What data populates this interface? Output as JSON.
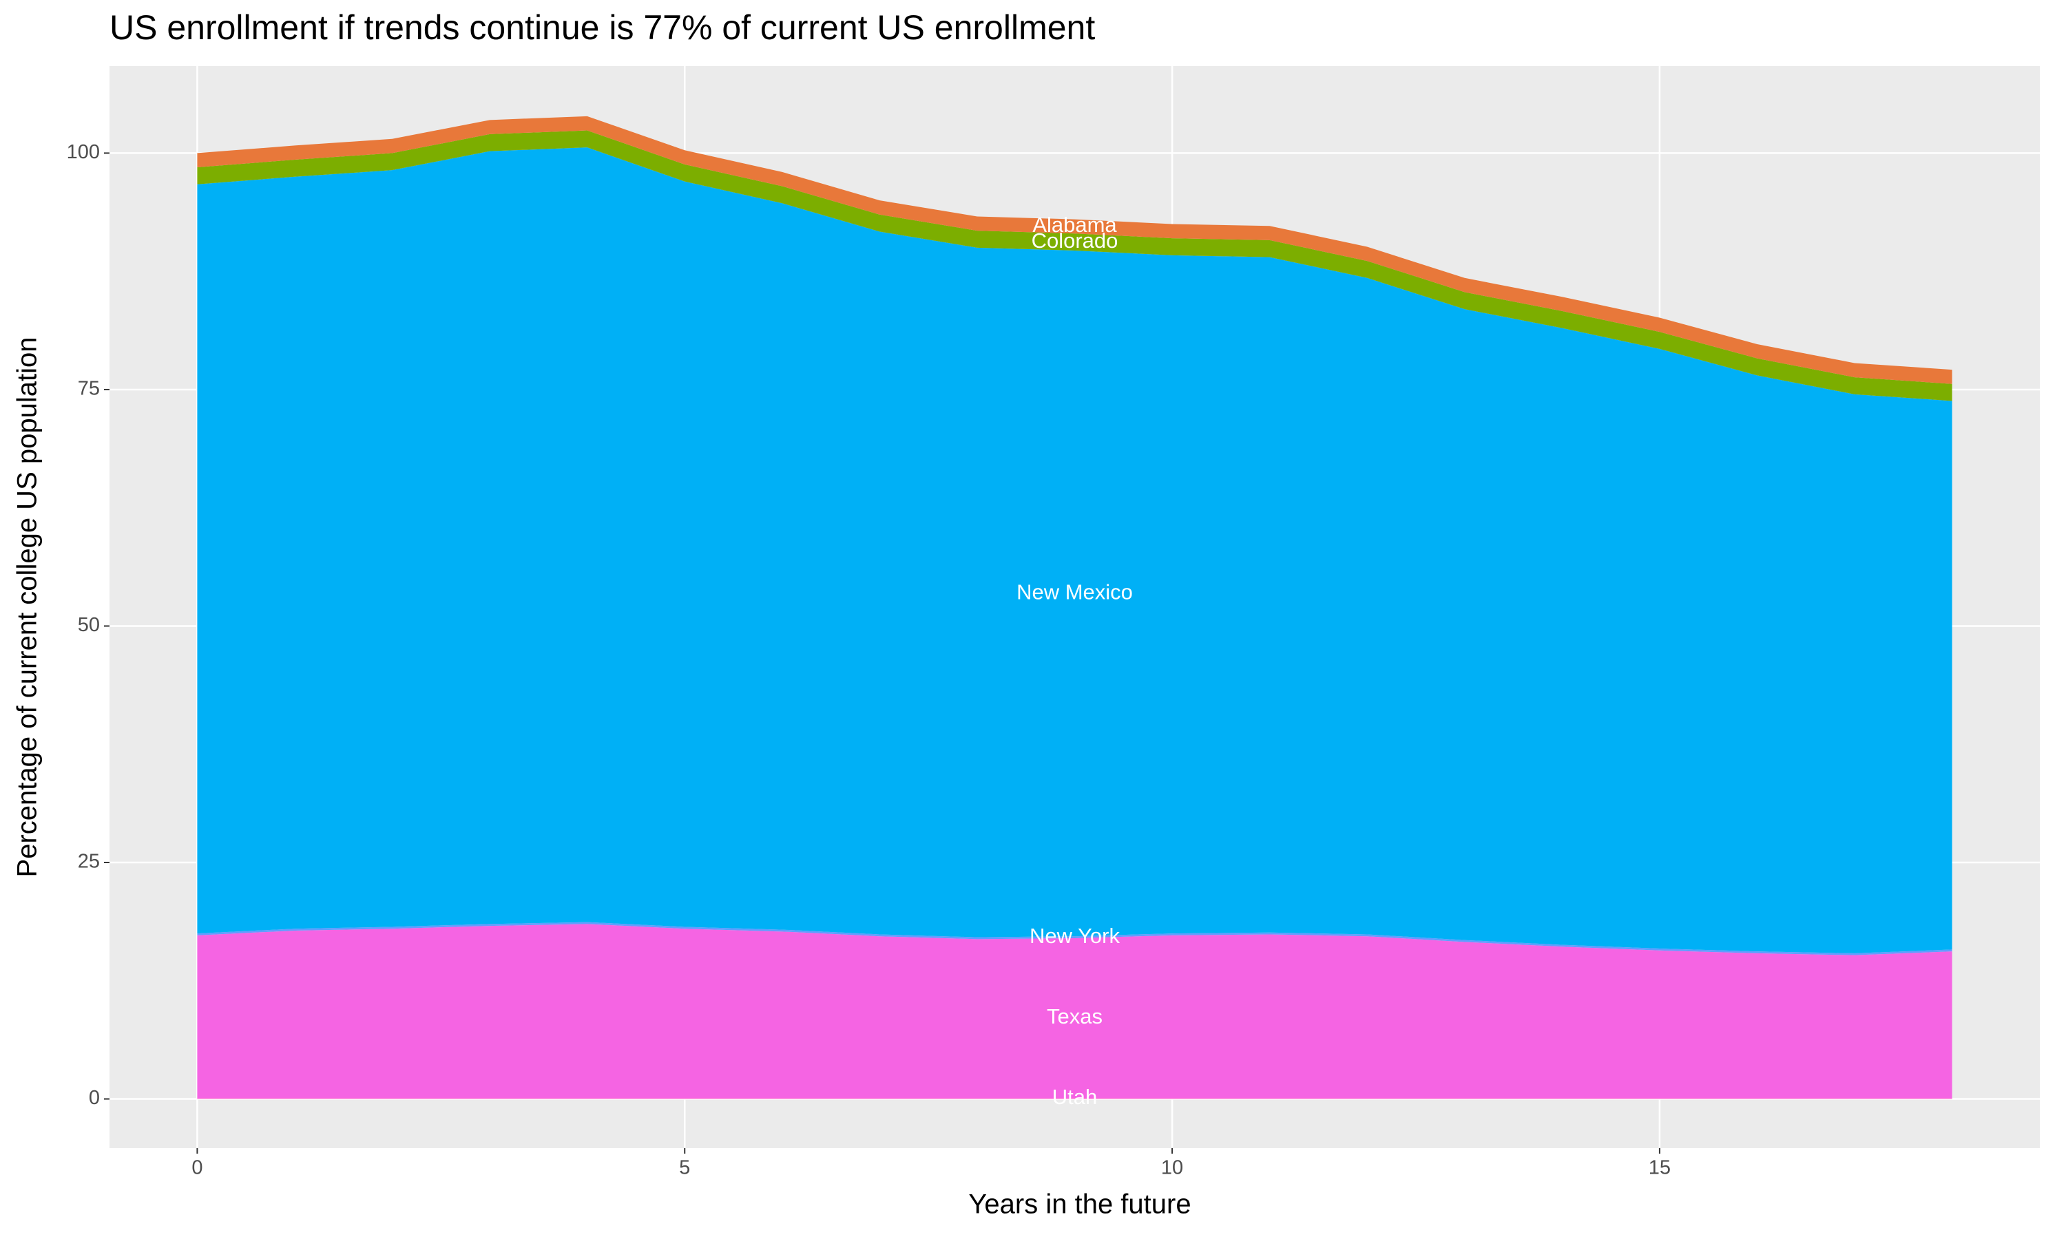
{
  "chart_data": {
    "type": "area",
    "title": "US enrollment if trends continue is 77% of current US enrollment",
    "x_label": "Years in the future",
    "y_label": "Percentage of current college US population",
    "x": [
      0,
      1,
      2,
      3,
      4,
      5,
      6,
      7,
      8,
      9,
      10,
      11,
      12,
      13,
      14,
      15,
      16,
      17,
      18
    ],
    "series": [
      {
        "name": "Utah",
        "color": "#fd61d1",
        "values": [
          0.1,
          0.1,
          0.1,
          0.1,
          0.1,
          0.1,
          0.1,
          0.1,
          0.1,
          0.1,
          0.1,
          0.1,
          0.1,
          0.1,
          0.1,
          0.1,
          0.1,
          0.1,
          0.1
        ]
      },
      {
        "name": "Texas",
        "color": "#f564e3",
        "values": [
          17.2,
          17.7,
          17.9,
          18.2,
          18.4,
          17.9,
          17.6,
          17.1,
          16.8,
          16.9,
          17.2,
          17.3,
          17.1,
          16.5,
          16.0,
          15.6,
          15.3,
          15.1,
          15.5
        ]
      },
      {
        "name": "New York",
        "color": "#619cff",
        "values": [
          0.2,
          0.2,
          0.2,
          0.2,
          0.2,
          0.2,
          0.2,
          0.2,
          0.2,
          0.2,
          0.2,
          0.2,
          0.2,
          0.2,
          0.2,
          0.2,
          0.2,
          0.2,
          0.2
        ]
      },
      {
        "name": "New Mexico",
        "color": "#00b0f6",
        "values": [
          79.2,
          79.5,
          80.0,
          81.7,
          81.9,
          78.8,
          76.8,
          74.3,
          72.9,
          72.5,
          71.7,
          71.4,
          69.4,
          66.7,
          65.2,
          63.4,
          60.9,
          59.1,
          58.0
        ]
      },
      {
        "name": "Colorado",
        "color": "#7cae00",
        "values": [
          1.8,
          1.8,
          1.8,
          1.8,
          1.8,
          1.8,
          1.8,
          1.8,
          1.8,
          1.8,
          1.8,
          1.8,
          1.8,
          1.8,
          1.8,
          1.8,
          1.8,
          1.8,
          1.8
        ]
      },
      {
        "name": "Alabama",
        "color": "#e8783a",
        "values": [
          1.5,
          1.5,
          1.5,
          1.5,
          1.5,
          1.5,
          1.5,
          1.5,
          1.5,
          1.5,
          1.5,
          1.5,
          1.5,
          1.5,
          1.5,
          1.5,
          1.5,
          1.5,
          1.5
        ]
      }
    ],
    "xlim": [
      -0.9,
      18.9
    ],
    "ylim": [
      -5.2,
      109.2
    ],
    "xticks": [
      0,
      5,
      10,
      15
    ],
    "yticks": [
      0,
      25,
      50,
      75,
      100
    ],
    "grid": true
  }
}
